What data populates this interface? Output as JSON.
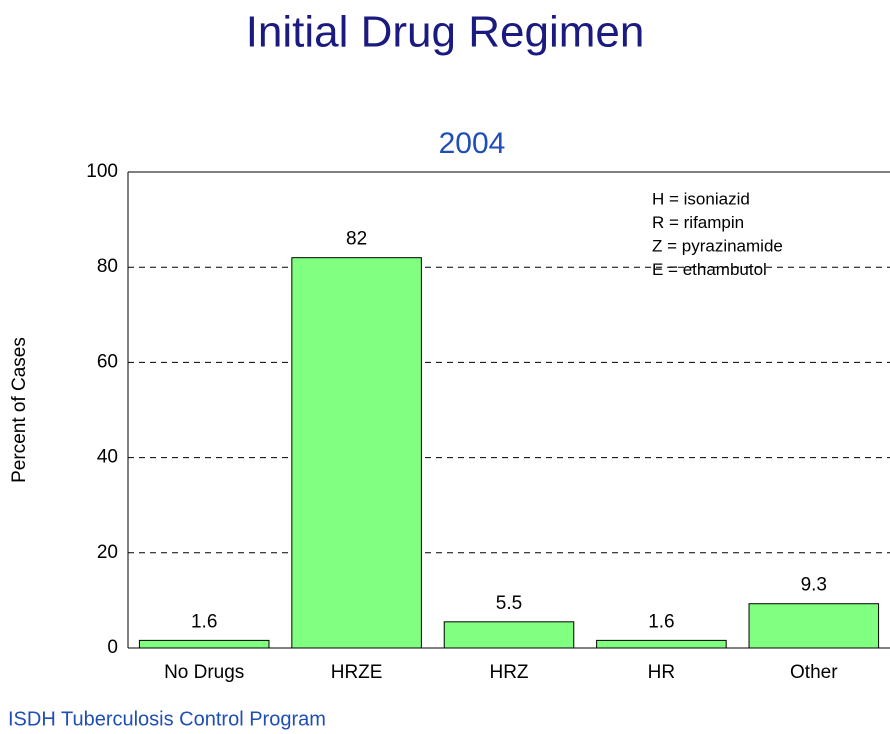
{
  "chart_data": {
    "type": "bar",
    "title": "Initial Drug Regimen",
    "subtitle": "2004",
    "ylabel": "Percent of Cases",
    "categories": [
      "No Drugs",
      "HRZE",
      "HRZ",
      "HR",
      "Other"
    ],
    "values": [
      1.6,
      82,
      5.5,
      1.6,
      9.3
    ],
    "color": "#80ff80",
    "ylim": [
      0,
      100
    ],
    "yticks": [
      0,
      20,
      40,
      60,
      80,
      100
    ],
    "grid": true,
    "annotations": [
      "H = isoniazid",
      "R = rifampin",
      "Z = pyrazinamide",
      "E = ethambutol"
    ],
    "footer": "ISDH Tuberculosis Control Program"
  }
}
